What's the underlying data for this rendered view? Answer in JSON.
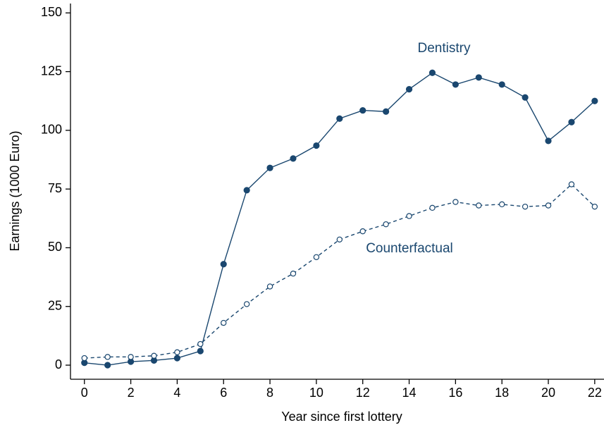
{
  "chart_data": {
    "type": "line",
    "x_label": "Year since first lottery",
    "y_label": "Earnings (1000 Euro)",
    "x": [
      0,
      1,
      2,
      3,
      4,
      5,
      6,
      7,
      8,
      9,
      10,
      11,
      12,
      13,
      14,
      15,
      16,
      17,
      18,
      19,
      20,
      21,
      22
    ],
    "series": [
      {
        "name": "Dentistry",
        "color": "#1a476f",
        "dash": "solid",
        "marker": "filled",
        "values": [
          1,
          0,
          1.5,
          2,
          3,
          6,
          43,
          74.5,
          84,
          88,
          93.5,
          105,
          108.5,
          108,
          117.5,
          124.5,
          119.5,
          122.5,
          119.5,
          114,
          95.5,
          103.5,
          112.5
        ]
      },
      {
        "name": "Counterfactual",
        "color": "#1a476f",
        "dash": "dashed",
        "marker": "hollow",
        "values": [
          3,
          3.5,
          3.5,
          4,
          5.5,
          9,
          18,
          26,
          33.5,
          39,
          46,
          53.5,
          57,
          60,
          63.5,
          67,
          69.5,
          68,
          68.5,
          67.5,
          68,
          77,
          67.5
        ]
      }
    ],
    "xlim": [
      -0.6,
      22.4
    ],
    "xticks": [
      0,
      2,
      4,
      6,
      8,
      10,
      12,
      14,
      16,
      18,
      20,
      22
    ],
    "ylim": [
      -6,
      154
    ],
    "yticks": [
      0,
      25,
      50,
      75,
      100,
      125,
      150
    ],
    "grid": false
  }
}
